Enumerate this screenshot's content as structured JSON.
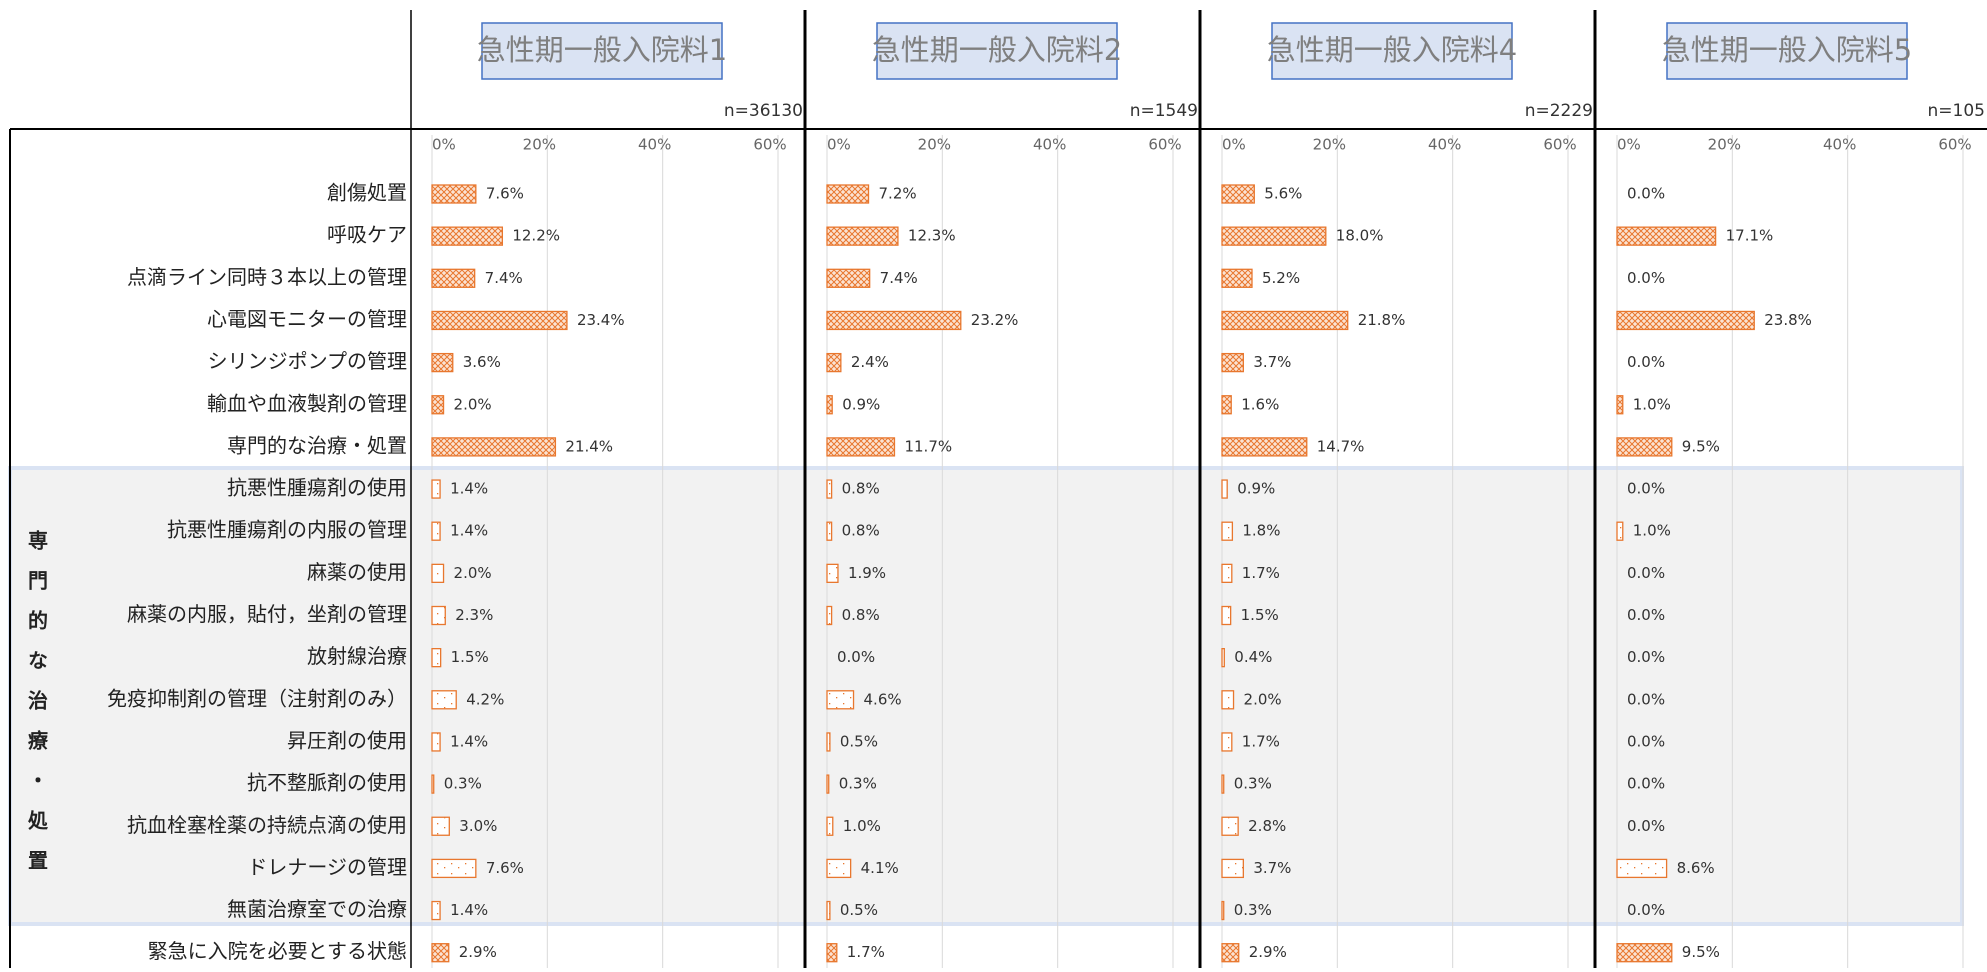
{
  "categories": [
    "創傷処置",
    "呼吸ケア",
    "点滴ライン同時３本以上の管理",
    "心電図モニターの管理",
    "シリンジポンプの管理",
    "輸血や血液製剤の管理",
    "専門的な治療・処置",
    "抗悪性腫瘍剤の使用",
    "抗悪性腫瘍剤の内服の管理",
    "麻薬の使用",
    "麻薬の内服，貼付，坐剤の管理",
    "放射線治療",
    "免疫抑制剤の管理（注射剤のみ）",
    "昇圧剤の使用",
    "抗不整脈剤の使用",
    "抗血栓塞栓薬の持続点滴の使用",
    "ドレナージの管理",
    "無菌治療室での治療",
    "緊急に入院を必要とする状態"
  ],
  "group_label": "専門的な治療・処置",
  "chart_data": [
    {
      "type": "bar",
      "title": "急性期一般入院料1",
      "n_label": "n=36130",
      "color": "#e8772e",
      "xlim": [
        0,
        60
      ],
      "xticks": [
        {
          "value": 0,
          "label": "0%"
        },
        {
          "value": 20,
          "label": "20%"
        },
        {
          "value": 40,
          "label": "40%"
        },
        {
          "value": 60,
          "label": "60%"
        }
      ],
      "values": [
        7.6,
        12.2,
        7.4,
        23.4,
        3.6,
        2.0,
        21.4,
        1.4,
        1.4,
        2.0,
        2.3,
        1.5,
        4.2,
        1.4,
        0.3,
        3.0,
        7.6,
        1.4,
        2.9
      ],
      "value_labels": [
        "7.6%",
        "12.2%",
        "7.4%",
        "23.4%",
        "3.6%",
        "2.0%",
        "21.4%",
        "1.4%",
        "1.4%",
        "2.0%",
        "2.3%",
        "1.5%",
        "4.2%",
        "1.4%",
        "0.3%",
        "3.0%",
        "7.6%",
        "1.4%",
        "2.9%"
      ]
    },
    {
      "type": "bar",
      "title": "急性期一般入院料2",
      "n_label": "n=1549",
      "color": "#e8772e",
      "xlim": [
        0,
        60
      ],
      "xticks": [
        {
          "value": 0,
          "label": "0%"
        },
        {
          "value": 20,
          "label": "20%"
        },
        {
          "value": 40,
          "label": "40%"
        },
        {
          "value": 60,
          "label": "60%"
        }
      ],
      "values": [
        7.2,
        12.3,
        7.4,
        23.2,
        2.4,
        0.9,
        11.7,
        0.8,
        0.8,
        1.9,
        0.8,
        0.0,
        4.6,
        0.5,
        0.3,
        1.0,
        4.1,
        0.5,
        1.7
      ],
      "value_labels": [
        "7.2%",
        "12.3%",
        "7.4%",
        "23.2%",
        "2.4%",
        "0.9%",
        "11.7%",
        "0.8%",
        "0.8%",
        "1.9%",
        "0.8%",
        "0.0%",
        "4.6%",
        "0.5%",
        "0.3%",
        "1.0%",
        "4.1%",
        "0.5%",
        "1.7%"
      ]
    },
    {
      "type": "bar",
      "title": "急性期一般入院料4",
      "n_label": "n=2229",
      "color": "#e8772e",
      "xlim": [
        0,
        60
      ],
      "xticks": [
        {
          "value": 0,
          "label": "0%"
        },
        {
          "value": 20,
          "label": "20%"
        },
        {
          "value": 40,
          "label": "40%"
        },
        {
          "value": 60,
          "label": "60%"
        }
      ],
      "values": [
        5.6,
        18.0,
        5.2,
        21.8,
        3.7,
        1.6,
        14.7,
        0.9,
        1.8,
        1.7,
        1.5,
        0.4,
        2.0,
        1.7,
        0.3,
        2.8,
        3.7,
        0.3,
        2.9
      ],
      "value_labels": [
        "5.6%",
        "18.0%",
        "5.2%",
        "21.8%",
        "3.7%",
        "1.6%",
        "14.7%",
        "0.9%",
        "1.8%",
        "1.7%",
        "1.5%",
        "0.4%",
        "2.0%",
        "1.7%",
        "0.3%",
        "2.8%",
        "3.7%",
        "0.3%",
        "2.9%"
      ]
    },
    {
      "type": "bar",
      "title": "急性期一般入院料5",
      "n_label": "n=105",
      "color": "#e8772e",
      "xlim": [
        0,
        60
      ],
      "xticks": [
        {
          "value": 0,
          "label": "0%"
        },
        {
          "value": 20,
          "label": "20%"
        },
        {
          "value": 40,
          "label": "40%"
        },
        {
          "value": 60,
          "label": "60%"
        }
      ],
      "values": [
        0.0,
        17.1,
        0.0,
        23.8,
        0.0,
        1.0,
        9.5,
        0.0,
        1.0,
        0.0,
        0.0,
        0.0,
        0.0,
        0.0,
        0.0,
        0.0,
        8.6,
        0.0,
        9.5
      ],
      "value_labels": [
        "0.0%",
        "17.1%",
        "0.0%",
        "23.8%",
        "0.0%",
        "1.0%",
        "9.5%",
        "0.0%",
        "1.0%",
        "0.0%",
        "0.0%",
        "0.0%",
        "0.0%",
        "0.0%",
        "0.0%",
        "0.0%",
        "8.6%",
        "0.0%",
        "9.5%"
      ]
    }
  ]
}
